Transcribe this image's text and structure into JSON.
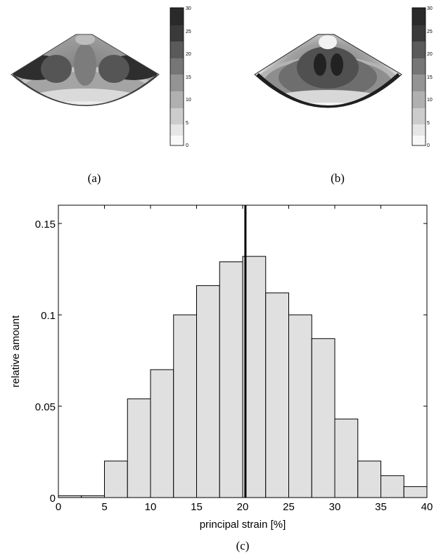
{
  "panels": {
    "a": {
      "caption": "(a)",
      "colorbar_ticks": [
        "30",
        "25",
        "20",
        "15",
        "10",
        "5",
        "0"
      ]
    },
    "b": {
      "caption": "(b)",
      "colorbar_ticks": [
        "30",
        "25",
        "20",
        "15",
        "10",
        "5",
        "0"
      ]
    },
    "c": {
      "caption": "(c)"
    }
  },
  "chart_data": {
    "type": "bar",
    "xlabel": "principal strain [%]",
    "ylabel": "relative amount",
    "xlim": [
      0,
      40
    ],
    "ylim": [
      0,
      0.16
    ],
    "xticks": [
      "0",
      "5",
      "10",
      "15",
      "20",
      "25",
      "30",
      "35",
      "40"
    ],
    "yticks": [
      "0",
      "0.05",
      "0.1",
      "0.15"
    ],
    "bin_width": 2.5,
    "bins": [
      0,
      2.5,
      5,
      7.5,
      10,
      12.5,
      15,
      17.5,
      20,
      22.5,
      25,
      27.5,
      30,
      32.5,
      35,
      37.5
    ],
    "values": [
      0.001,
      0.001,
      0.02,
      0.054,
      0.07,
      0.1,
      0.116,
      0.129,
      0.132,
      0.112,
      0.1,
      0.087,
      0.043,
      0.02,
      0.012,
      0.006
    ],
    "mean_line_x": 20.3,
    "bar_fill": "#e0e0e0",
    "grid": false
  }
}
